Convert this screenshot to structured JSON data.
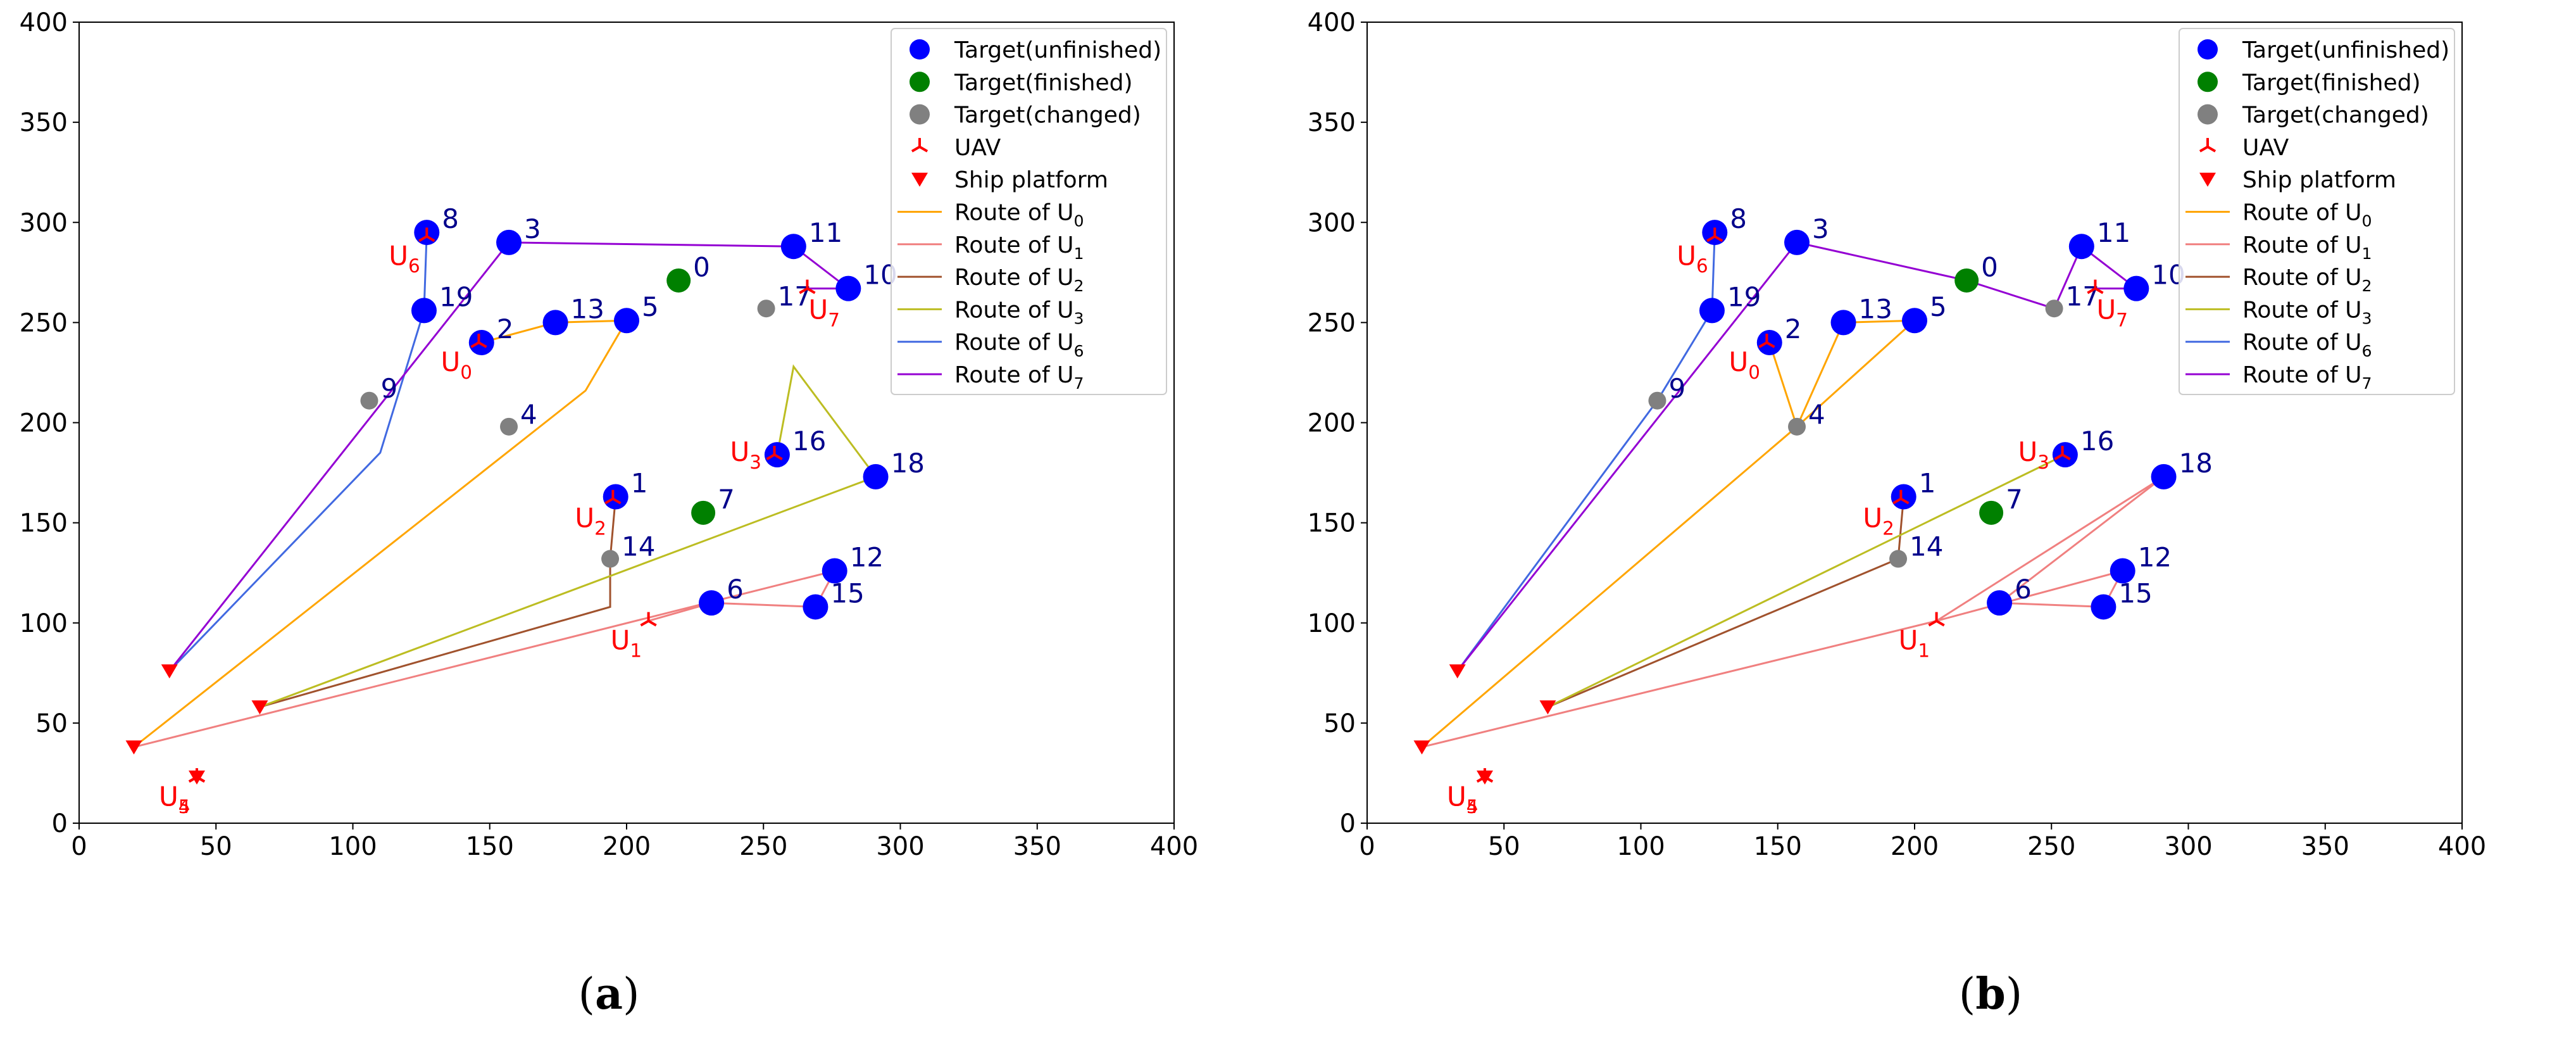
{
  "colors": {
    "unfinished": "#0000ff",
    "finished": "#008000",
    "changed": "#808080",
    "uav": "#ff0000",
    "ship": "#ff0000",
    "target_label": "#00008b",
    "uav_label": "#ff0000",
    "route_U0": "#ffa500",
    "route_U1": "#f08080",
    "route_U2": "#a0522d",
    "route_U3": "#bcbd22",
    "route_U6": "#4169e1",
    "route_U7": "#9400d3"
  },
  "legend": {
    "entries": [
      {
        "label": "Target(unfinished)",
        "marker": "circle",
        "color": "#0000ff"
      },
      {
        "label": "Target(finished)",
        "marker": "circle",
        "color": "#008000"
      },
      {
        "label": "Target(changed)",
        "marker": "circle",
        "color": "#808080"
      },
      {
        "label": "UAV",
        "marker": "tri",
        "color": "#ff0000"
      },
      {
        "label": "Ship platform",
        "marker": "triangle-down",
        "color": "#ff0000"
      },
      {
        "label": "Route of U",
        "sub": "0",
        "marker": "line",
        "color": "#ffa500"
      },
      {
        "label": "Route of U",
        "sub": "1",
        "marker": "line",
        "color": "#f08080"
      },
      {
        "label": "Route of U",
        "sub": "2",
        "marker": "line",
        "color": "#a0522d"
      },
      {
        "label": "Route of U",
        "sub": "3",
        "marker": "line",
        "color": "#bcbd22"
      },
      {
        "label": "Route of U",
        "sub": "6",
        "marker": "line",
        "color": "#4169e1"
      },
      {
        "label": "Route of U",
        "sub": "7",
        "marker": "line",
        "color": "#9400d3"
      }
    ]
  },
  "chart_data": [
    {
      "type": "scatter",
      "caption": "a",
      "xlim": [
        0,
        400
      ],
      "ylim": [
        0,
        400
      ],
      "xticks": [
        0,
        50,
        100,
        150,
        200,
        250,
        300,
        350,
        400
      ],
      "yticks": [
        0,
        50,
        100,
        150,
        200,
        250,
        300,
        350,
        400
      ],
      "legend_position": "top-right",
      "targets": [
        {
          "id": "0",
          "x": 219,
          "y": 271,
          "status": "finished"
        },
        {
          "id": "1",
          "x": 196,
          "y": 163,
          "status": "unfinished"
        },
        {
          "id": "2",
          "x": 147,
          "y": 240,
          "status": "unfinished"
        },
        {
          "id": "3",
          "x": 157,
          "y": 290,
          "status": "unfinished"
        },
        {
          "id": "4",
          "x": 157,
          "y": 198,
          "status": "changed"
        },
        {
          "id": "5",
          "x": 200,
          "y": 251,
          "status": "unfinished"
        },
        {
          "id": "6",
          "x": 231,
          "y": 110,
          "status": "unfinished"
        },
        {
          "id": "7",
          "x": 228,
          "y": 155,
          "status": "finished"
        },
        {
          "id": "8",
          "x": 127,
          "y": 295,
          "status": "unfinished"
        },
        {
          "id": "9",
          "x": 106,
          "y": 211,
          "status": "changed"
        },
        {
          "id": "10",
          "x": 281,
          "y": 267,
          "status": "unfinished"
        },
        {
          "id": "11",
          "x": 261,
          "y": 288,
          "status": "unfinished"
        },
        {
          "id": "12",
          "x": 276,
          "y": 126,
          "status": "unfinished"
        },
        {
          "id": "13",
          "x": 174,
          "y": 250,
          "status": "unfinished"
        },
        {
          "id": "14",
          "x": 194,
          "y": 132,
          "status": "changed"
        },
        {
          "id": "15",
          "x": 269,
          "y": 108,
          "status": "unfinished"
        },
        {
          "id": "16",
          "x": 255,
          "y": 184,
          "status": "unfinished"
        },
        {
          "id": "17",
          "x": 251,
          "y": 257,
          "status": "changed"
        },
        {
          "id": "18",
          "x": 291,
          "y": 173,
          "status": "unfinished"
        },
        {
          "id": "19",
          "x": 126,
          "y": 256,
          "status": "unfinished"
        }
      ],
      "ships": [
        {
          "x": 20,
          "y": 38
        },
        {
          "x": 33,
          "y": 76
        },
        {
          "x": 66,
          "y": 58
        },
        {
          "x": 43,
          "y": 23
        }
      ],
      "uavs": [
        {
          "label": "U",
          "sub": "0",
          "x": 146,
          "y": 240,
          "label_side": "below-left"
        },
        {
          "label": "U",
          "sub": "1",
          "x": 208,
          "y": 101,
          "label_side": "below-left"
        },
        {
          "label": "U",
          "sub": "2",
          "x": 195,
          "y": 162,
          "label_side": "below-left"
        },
        {
          "label": "U",
          "sub": "3",
          "x": 254,
          "y": 184,
          "label_side": "left"
        },
        {
          "label": "U",
          "sub": "6",
          "x": 127,
          "y": 293,
          "label_side": "below-left"
        },
        {
          "label": "U",
          "sub": "7",
          "x": 266,
          "y": 267,
          "label_side": "below"
        },
        {
          "label": "U",
          "sub": "5",
          "x": 43,
          "y": 23,
          "label_side": "below-left"
        },
        {
          "label": "U",
          "sub": "4",
          "x": 43,
          "y": 23,
          "label_side": "below-left"
        }
      ],
      "routes": [
        {
          "uav": "U0",
          "color": "#ffa500",
          "points": [
            [
              147,
              240
            ],
            [
              174,
              250
            ],
            [
              200,
              251
            ],
            [
              185,
              216
            ],
            [
              20,
              38
            ]
          ]
        },
        {
          "uav": "U1",
          "color": "#f08080",
          "points": [
            [
              208,
              101
            ],
            [
              231,
              110
            ],
            [
              269,
              108
            ],
            [
              276,
              126
            ],
            [
              20,
              38
            ]
          ]
        },
        {
          "uav": "U2",
          "color": "#a0522d",
          "points": [
            [
              196,
              163
            ],
            [
              194,
              132
            ],
            [
              194,
              108
            ],
            [
              66,
              58
            ]
          ]
        },
        {
          "uav": "U3",
          "color": "#bcbd22",
          "points": [
            [
              255,
              184
            ],
            [
              261,
              228
            ],
            [
              291,
              173
            ],
            [
              66,
              58
            ]
          ]
        },
        {
          "uav": "U6",
          "color": "#4169e1",
          "points": [
            [
              127,
              295
            ],
            [
              126,
              256
            ],
            [
              110,
              185
            ],
            [
              33,
              76
            ]
          ]
        },
        {
          "uav": "U7",
          "color": "#9400d3",
          "points": [
            [
              266,
              267
            ],
            [
              281,
              267
            ],
            [
              261,
              288
            ],
            [
              157,
              290
            ],
            [
              33,
              76
            ]
          ]
        }
      ]
    },
    {
      "type": "scatter",
      "caption": "b",
      "xlim": [
        0,
        400
      ],
      "ylim": [
        0,
        400
      ],
      "xticks": [
        0,
        50,
        100,
        150,
        200,
        250,
        300,
        350,
        400
      ],
      "yticks": [
        0,
        50,
        100,
        150,
        200,
        250,
        300,
        350,
        400
      ],
      "legend_position": "top-right",
      "targets": [
        {
          "id": "0",
          "x": 219,
          "y": 271,
          "status": "finished"
        },
        {
          "id": "1",
          "x": 196,
          "y": 163,
          "status": "unfinished"
        },
        {
          "id": "2",
          "x": 147,
          "y": 240,
          "status": "unfinished"
        },
        {
          "id": "3",
          "x": 157,
          "y": 290,
          "status": "unfinished"
        },
        {
          "id": "4",
          "x": 157,
          "y": 198,
          "status": "changed"
        },
        {
          "id": "5",
          "x": 200,
          "y": 251,
          "status": "unfinished"
        },
        {
          "id": "6",
          "x": 231,
          "y": 110,
          "status": "unfinished"
        },
        {
          "id": "7",
          "x": 228,
          "y": 155,
          "status": "finished"
        },
        {
          "id": "8",
          "x": 127,
          "y": 295,
          "status": "unfinished"
        },
        {
          "id": "9",
          "x": 106,
          "y": 211,
          "status": "changed"
        },
        {
          "id": "10",
          "x": 281,
          "y": 267,
          "status": "unfinished"
        },
        {
          "id": "11",
          "x": 261,
          "y": 288,
          "status": "unfinished"
        },
        {
          "id": "12",
          "x": 276,
          "y": 126,
          "status": "unfinished"
        },
        {
          "id": "13",
          "x": 174,
          "y": 250,
          "status": "unfinished"
        },
        {
          "id": "14",
          "x": 194,
          "y": 132,
          "status": "changed"
        },
        {
          "id": "15",
          "x": 269,
          "y": 108,
          "status": "unfinished"
        },
        {
          "id": "16",
          "x": 255,
          "y": 184,
          "status": "unfinished"
        },
        {
          "id": "17",
          "x": 251,
          "y": 257,
          "status": "changed"
        },
        {
          "id": "18",
          "x": 291,
          "y": 173,
          "status": "unfinished"
        },
        {
          "id": "19",
          "x": 126,
          "y": 256,
          "status": "unfinished"
        }
      ],
      "ships": [
        {
          "x": 20,
          "y": 38
        },
        {
          "x": 33,
          "y": 76
        },
        {
          "x": 66,
          "y": 58
        },
        {
          "x": 43,
          "y": 23
        }
      ],
      "uavs": [
        {
          "label": "U",
          "sub": "0",
          "x": 146,
          "y": 240,
          "label_side": "below-left"
        },
        {
          "label": "U",
          "sub": "1",
          "x": 208,
          "y": 101,
          "label_side": "below-left"
        },
        {
          "label": "U",
          "sub": "2",
          "x": 195,
          "y": 162,
          "label_side": "below-left"
        },
        {
          "label": "U",
          "sub": "3",
          "x": 254,
          "y": 184,
          "label_side": "left"
        },
        {
          "label": "U",
          "sub": "6",
          "x": 127,
          "y": 293,
          "label_side": "below-left"
        },
        {
          "label": "U",
          "sub": "7",
          "x": 266,
          "y": 267,
          "label_side": "below"
        },
        {
          "label": "U",
          "sub": "5",
          "x": 43,
          "y": 23,
          "label_side": "below-left"
        },
        {
          "label": "U",
          "sub": "4",
          "x": 43,
          "y": 23,
          "label_side": "below-left"
        }
      ],
      "routes": [
        {
          "uav": "U0",
          "color": "#ffa500",
          "points": [
            [
              147,
              240
            ],
            [
              157,
              198
            ],
            [
              174,
              250
            ],
            [
              200,
              251
            ],
            [
              157,
              198
            ],
            [
              20,
              38
            ]
          ]
        },
        {
          "uav": "U1",
          "color": "#f08080",
          "points": [
            [
              208,
              101
            ],
            [
              291,
              173
            ],
            [
              231,
              110
            ],
            [
              269,
              108
            ],
            [
              276,
              126
            ],
            [
              208,
              101
            ],
            [
              20,
              38
            ]
          ]
        },
        {
          "uav": "U2",
          "color": "#a0522d",
          "points": [
            [
              196,
              163
            ],
            [
              194,
              132
            ],
            [
              66,
              58
            ]
          ]
        },
        {
          "uav": "U3",
          "color": "#bcbd22",
          "points": [
            [
              255,
              184
            ],
            [
              66,
              58
            ]
          ]
        },
        {
          "uav": "U6",
          "color": "#4169e1",
          "points": [
            [
              127,
              295
            ],
            [
              126,
              256
            ],
            [
              106,
              211
            ],
            [
              33,
              76
            ]
          ]
        },
        {
          "uav": "U7",
          "color": "#9400d3",
          "points": [
            [
              266,
              267
            ],
            [
              281,
              267
            ],
            [
              261,
              288
            ],
            [
              251,
              257
            ],
            [
              219,
              271
            ],
            [
              157,
              290
            ],
            [
              33,
              76
            ]
          ]
        }
      ]
    }
  ],
  "captions": {
    "a": "a",
    "b": "b"
  }
}
